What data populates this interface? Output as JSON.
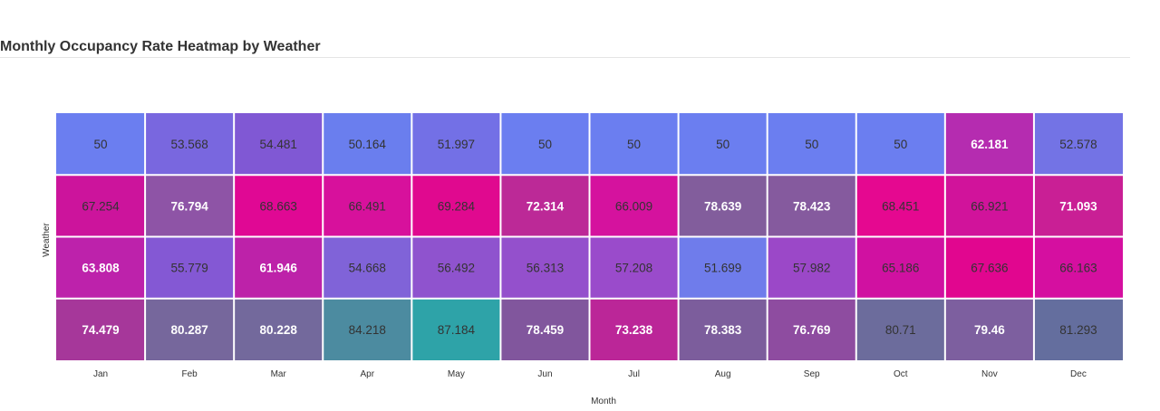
{
  "chart_data": {
    "type": "heatmap",
    "title": "Monthly Occupancy Rate Heatmap by Weather",
    "xlabel": "Month",
    "ylabel": "Weather",
    "x_categories": [
      "Jan",
      "Feb",
      "Mar",
      "Apr",
      "May",
      "Jun",
      "Jul",
      "Aug",
      "Sep",
      "Oct",
      "Nov",
      "Dec"
    ],
    "y_categories": [
      "",
      "",
      "",
      ""
    ],
    "values": [
      [
        50,
        53.568,
        54.481,
        50.164,
        51.997,
        50,
        50,
        50,
        50,
        50,
        62.181,
        52.578
      ],
      [
        67.254,
        76.794,
        68.663,
        66.491,
        69.284,
        72.314,
        66.009,
        78.639,
        78.423,
        68.451,
        66.921,
        71.093
      ],
      [
        63.808,
        55.779,
        61.946,
        54.668,
        56.492,
        56.313,
        57.208,
        51.699,
        57.982,
        65.186,
        67.636,
        66.163
      ],
      [
        74.479,
        80.287,
        80.228,
        84.218,
        87.184,
        78.459,
        73.238,
        78.383,
        76.769,
        80.71,
        79.46,
        81.293
      ]
    ],
    "cell_colors": [
      [
        "#6b7ef0",
        "#7967df",
        "#8058d4",
        "#6a7eee",
        "#7370e6",
        "#6b7ef0",
        "#6b7ef0",
        "#6b7ef0",
        "#6b7ef0",
        "#6b7ef0",
        "#b52cb0",
        "#7373e5"
      ],
      [
        "#cc149c",
        "#8e54a6",
        "#e00894",
        "#d7119c",
        "#e0098f",
        "#bc2997",
        "#d5129e",
        "#825d9c",
        "#855a9e",
        "#e50890",
        "#d1139b",
        "#c91f95"
      ],
      [
        "#bd22ab",
        "#8458d4",
        "#bd22a9",
        "#8063d8",
        "#8f53ce",
        "#9450cc",
        "#9a4bcb",
        "#6f7ceb",
        "#9b48c8",
        "#d011a1",
        "#e1068f",
        "#d50fa0"
      ],
      [
        "#a6379a",
        "#76679c",
        "#73699c",
        "#4c8ba0",
        "#2ea3a8",
        "#81569d",
        "#bb2698",
        "#7c5d9c",
        "#8e4ca0",
        "#6c6c9c",
        "#7d5f9f",
        "#646e9e"
      ]
    ],
    "label_colors": [
      [
        "#333333",
        "#333333",
        "#333333",
        "#333333",
        "#333333",
        "#333333",
        "#333333",
        "#333333",
        "#333333",
        "#333333",
        "#ffffff",
        "#333333"
      ],
      [
        "#333333",
        "#ffffff",
        "#333333",
        "#333333",
        "#333333",
        "#ffffff",
        "#333333",
        "#ffffff",
        "#ffffff",
        "#333333",
        "#333333",
        "#ffffff"
      ],
      [
        "#ffffff",
        "#333333",
        "#ffffff",
        "#333333",
        "#333333",
        "#333333",
        "#333333",
        "#333333",
        "#333333",
        "#333333",
        "#333333",
        "#333333"
      ],
      [
        "#ffffff",
        "#ffffff",
        "#ffffff",
        "#333333",
        "#333333",
        "#ffffff",
        "#ffffff",
        "#ffffff",
        "#ffffff",
        "#333333",
        "#ffffff",
        "#333333"
      ]
    ],
    "legend": "none",
    "grid": false
  }
}
